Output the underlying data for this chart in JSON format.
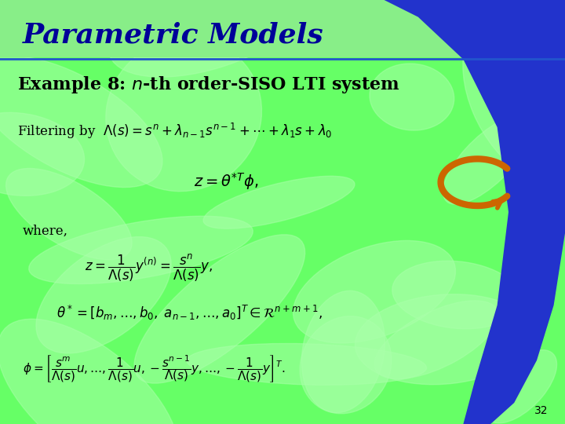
{
  "title": "Parametric Models",
  "bg_color": "#66ff66",
  "title_color": "#000099",
  "blue_color": "#2233cc",
  "orange_color": "#cc6600",
  "slide_number": "32",
  "line_color": "#2255cc"
}
